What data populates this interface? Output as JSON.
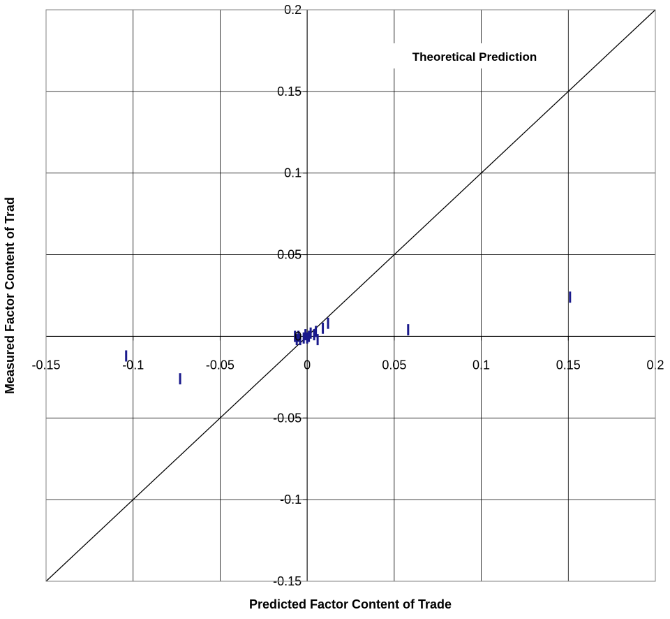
{
  "chart_data": {
    "type": "scatter",
    "title": "",
    "xlabel": "Predicted Factor Content of Trade",
    "ylabel": "Measured Factor Content of Trad",
    "xlim": [
      -0.15,
      0.2
    ],
    "ylim": [
      -0.15,
      0.2
    ],
    "x_ticks": [
      -0.15,
      -0.1,
      -0.05,
      0,
      0.05,
      0.1,
      0.15,
      0.2
    ],
    "y_ticks": [
      -0.15,
      -0.1,
      -0.05,
      0,
      0.05,
      0.1,
      0.15,
      0.2
    ],
    "x_tick_labels": [
      "-0.15",
      "-0.1",
      "-0.05",
      "0",
      "0.05",
      "0.1",
      "0.15",
      "0.2"
    ],
    "y_tick_labels": [
      "-0.15",
      "-0.1",
      "-0.05",
      "0",
      "0.05",
      "0.1",
      "0.15",
      "0.2"
    ],
    "grid": true,
    "marker": "vertical-dash",
    "marker_color": "#1a1a8c",
    "points": [
      {
        "x": 0.151,
        "y": 0.024
      },
      {
        "x": 0.058,
        "y": 0.004
      },
      {
        "x": 0.012,
        "y": 0.008
      },
      {
        "x": 0.009,
        "y": 0.005
      },
      {
        "x": 0.006,
        "y": -0.002
      },
      {
        "x": 0.005,
        "y": 0.003
      },
      {
        "x": 0.004,
        "y": 0.001
      },
      {
        "x": 0.002,
        "y": 0.002
      },
      {
        "x": 0.001,
        "y": 0.0
      },
      {
        "x": 0.0,
        "y": -0.001
      },
      {
        "x": -0.001,
        "y": 0.001
      },
      {
        "x": -0.002,
        "y": -0.001
      },
      {
        "x": -0.004,
        "y": -0.002
      },
      {
        "x": -0.005,
        "y": 0.0
      },
      {
        "x": -0.006,
        "y": -0.002
      },
      {
        "x": -0.007,
        "y": 0.0
      },
      {
        "x": -0.073,
        "y": -0.026
      },
      {
        "x": -0.104,
        "y": -0.012
      }
    ],
    "reference_line": {
      "name": "Theoretical Prediction",
      "slope": 1,
      "intercept": 0,
      "color": "#000000"
    },
    "annotations": [
      {
        "text": "Theoretical Prediction",
        "x": 0.1,
        "y": 0.17
      }
    ]
  }
}
